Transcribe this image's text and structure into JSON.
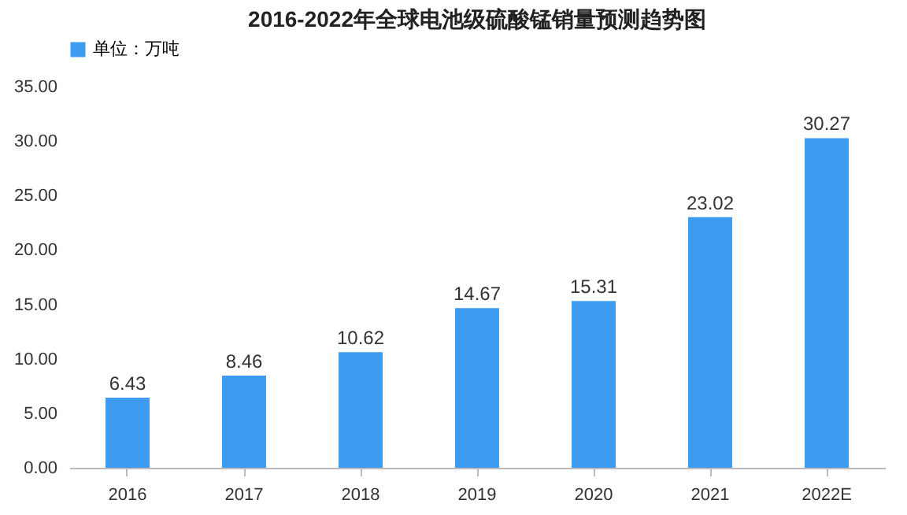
{
  "chart_data": {
    "type": "bar",
    "title": "2016-2022年全球电池级硫酸锰销量预测趋势图",
    "categories": [
      "2016",
      "2017",
      "2018",
      "2019",
      "2020",
      "2021",
      "2022E"
    ],
    "series": [
      {
        "name": "单位：万吨",
        "color": "#3d9cf2",
        "values": [
          6.43,
          8.46,
          10.62,
          14.67,
          15.31,
          23.02,
          30.27
        ]
      }
    ],
    "ylim": [
      0,
      35
    ],
    "yticks": [
      {
        "value": 0,
        "label": "0.00"
      },
      {
        "value": 5,
        "label": "5.00"
      },
      {
        "value": 10,
        "label": "10.00"
      },
      {
        "value": 15,
        "label": "15.00"
      },
      {
        "value": 20,
        "label": "20.00"
      },
      {
        "value": 25,
        "label": "25.00"
      },
      {
        "value": 30,
        "label": "30.00"
      },
      {
        "value": 35,
        "label": "35.00"
      }
    ],
    "data_labels": true,
    "legend": "top",
    "grid": false
  }
}
